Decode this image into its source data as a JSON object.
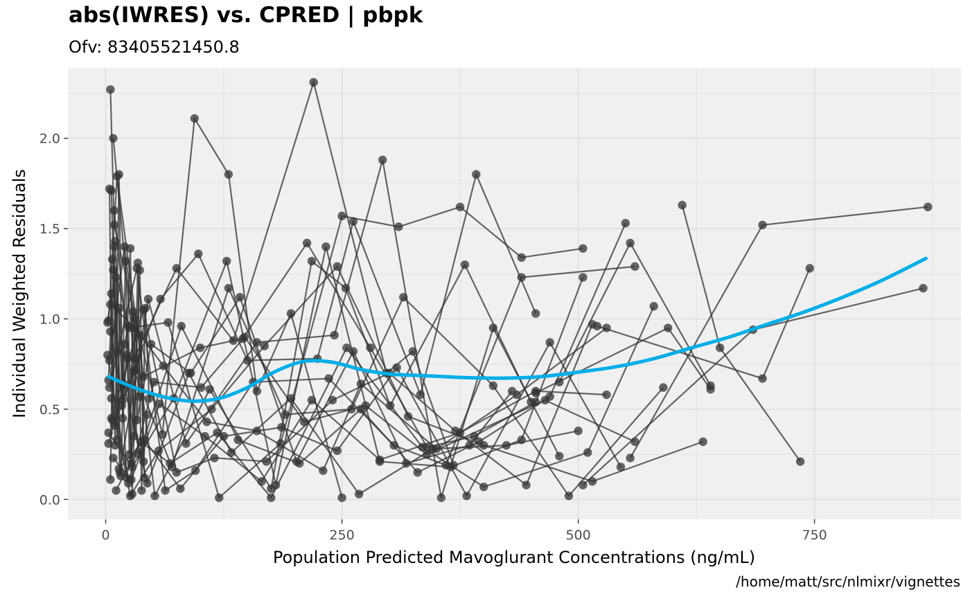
{
  "chart_data": {
    "type": "line",
    "title": "abs(IWRES) vs. CPRED | pbpk",
    "subtitle": "Ofv: 83405521450.8",
    "caption": "/home/matt/src/nlmixr/vignettes",
    "xlabel": "Population Predicted Mavoglurant Concentrations (ng/mL)",
    "ylabel": "Individual Weighted Residuals",
    "xlim": [
      -40,
      905
    ],
    "ylim": [
      -0.11,
      2.39
    ],
    "x_ticks": [
      0,
      250,
      500,
      750
    ],
    "x_tick_labels": [
      "0",
      "250",
      "500",
      "750"
    ],
    "y_ticks": [
      0.0,
      0.5,
      1.0,
      1.5,
      2.0
    ],
    "y_tick_labels": [
      "0.0",
      "0.5",
      "1.0",
      "1.5",
      "2.0"
    ],
    "grid": true,
    "panel_background": "#f0f0f0",
    "grid_color": "#dedede",
    "point_color": "#333333",
    "trend_color": "#00aee8",
    "series": [
      {
        "x": [
          5,
          9,
          60,
          94,
          130,
          160,
          196,
          250
        ],
        "y": [
          2.27,
          1.52,
          0.36,
          2.11,
          1.8,
          0.6,
          1.03,
          0.01
        ]
      },
      {
        "x": [
          8,
          30,
          75,
          135,
          220,
          297,
          325,
          368
        ],
        "y": [
          2.0,
          0.78,
          1.28,
          0.88,
          2.31,
          0.7,
          0.82,
          0.19
        ]
      },
      {
        "x": [
          3,
          12,
          40,
          100,
          145,
          213,
          280,
          340,
          390,
          455
        ],
        "y": [
          0.99,
          1.79,
          0.68,
          0.84,
          0.89,
          1.42,
          0.84,
          0.29,
          0.35,
          0.54
        ]
      },
      {
        "x": [
          6,
          15,
          45,
          85,
          160,
          242,
          293,
          355,
          410,
          480
        ],
        "y": [
          1.71,
          0.15,
          1.11,
          0.31,
          0.87,
          0.91,
          1.88,
          0.01,
          0.95,
          0.24
        ]
      },
      {
        "x": [
          4,
          20,
          52,
          110,
          175,
          218,
          254,
          301,
          380,
          450
        ],
        "y": [
          0.77,
          1.4,
          0.02,
          0.61,
          0.06,
          1.32,
          1.17,
          0.52,
          1.3,
          0.54
        ]
      },
      {
        "x": [
          7,
          25,
          66,
          120,
          185,
          250,
          310,
          375,
          440,
          505
        ],
        "y": [
          1.33,
          0.95,
          0.98,
          0.01,
          0.31,
          1.57,
          1.51,
          1.62,
          1.34,
          1.39
        ]
      },
      {
        "x": [
          5,
          18,
          58,
          98,
          150,
          224,
          262,
          333,
          392,
          455
        ],
        "y": [
          0.93,
          0.55,
          1.11,
          1.36,
          0.77,
          0.78,
          1.54,
          0.58,
          1.8,
          1.03
        ]
      },
      {
        "x": [
          9,
          35,
          80,
          140,
          205,
          270,
          330,
          395,
          470,
          550
        ],
        "y": [
          1.6,
          0.25,
          0.96,
          0.33,
          0.2,
          0.5,
          0.15,
          0.32,
          0.57,
          1.53
        ]
      },
      {
        "x": [
          3,
          28,
          72,
          128,
          180,
          233,
          290,
          365,
          440,
          505
        ],
        "y": [
          0.37,
          0.18,
          0.56,
          1.32,
          0.08,
          1.4,
          0.21,
          0.18,
          0.33,
          1.23
        ]
      },
      {
        "x": [
          10,
          22,
          48,
          90,
          142,
          202,
          262,
          318,
          385,
          430
        ],
        "y": [
          1.43,
          0.12,
          0.86,
          0.7,
          1.12,
          0.21,
          0.82,
          0.2,
          0.3,
          0.6
        ]
      },
      {
        "x": [
          6,
          40,
          75,
          115,
          170,
          240,
          300,
          370,
          445,
          515
        ],
        "y": [
          0.45,
          1.05,
          0.15,
          0.23,
          0.21,
          0.55,
          0.7,
          0.38,
          0.08,
          0.97
        ]
      },
      {
        "x": [
          4,
          33,
          63,
          95,
          156,
          236,
          305,
          360,
          440,
          560
        ],
        "y": [
          0.62,
          1.28,
          0.05,
          0.16,
          0.65,
          0.67,
          0.3,
          0.19,
          1.23,
          1.29
        ]
      },
      {
        "x": [
          8,
          27,
          57,
          105,
          165,
          218,
          290,
          375,
          455,
          530
        ],
        "y": [
          0.23,
          0.11,
          0.53,
          0.35,
          0.1,
          0.55,
          0.22,
          0.37,
          0.6,
          0.58
        ]
      },
      {
        "x": [
          11,
          37,
          68,
          118,
          175,
          255,
          335,
          400,
          510,
          580
        ],
        "y": [
          0.05,
          0.32,
          0.2,
          0.37,
          0.01,
          0.84,
          0.29,
          0.07,
          0.26,
          1.07
        ]
      },
      {
        "x": [
          3,
          19,
          44,
          88,
          133,
          196,
          268,
          346,
          424,
          500
        ],
        "y": [
          0.31,
          0.64,
          0.09,
          0.7,
          0.26,
          0.56,
          0.03,
          0.28,
          0.3,
          0.38
        ]
      },
      {
        "x": [
          5,
          31,
          61,
          107,
          160,
          230,
          270,
          350,
          435,
          530
        ],
        "y": [
          1.08,
          0.95,
          0.74,
          0.43,
          0.38,
          0.16,
          0.64,
          0.28,
          0.58,
          0.95
        ]
      },
      {
        "x": [
          14,
          41,
          79,
          125,
          186,
          245,
          308,
          382,
          470,
          545
        ],
        "y": [
          0.17,
          0.33,
          0.06,
          0.35,
          0.4,
          0.27,
          0.73,
          0.02,
          0.87,
          0.18
        ]
      },
      {
        "x": [
          2,
          24,
          51,
          101,
          147,
          210,
          275,
          340,
          465,
          560
        ],
        "y": [
          0.8,
          0.09,
          0.65,
          0.62,
          0.9,
          0.43,
          0.52,
          0.25,
          0.55,
          0.32
        ]
      },
      {
        "x": [
          9,
          30,
          70,
          130,
          190,
          260,
          315,
          410,
          490,
          590
        ],
        "y": [
          0.41,
          0.71,
          0.18,
          1.17,
          0.47,
          0.5,
          1.12,
          0.63,
          0.02,
          0.62
        ]
      },
      {
        "x": [
          6,
          26,
          56,
          112,
          168,
          245,
          320,
          400,
          515,
          632
        ],
        "y": [
          0.56,
          0.02,
          0.27,
          0.5,
          0.85,
          1.29,
          0.46,
          0.3,
          0.1,
          0.32
        ]
      },
      {
        "x": [
          480,
          555,
          640
        ],
        "y": [
          0.65,
          1.42,
          0.63
        ]
      },
      {
        "x": [
          455,
          595,
          640
        ],
        "y": [
          0.59,
          0.95,
          0.61
        ]
      },
      {
        "x": [
          610,
          650,
          735
        ],
        "y": [
          1.63,
          0.84,
          0.21
        ]
      },
      {
        "x": [
          555,
          695,
          870
        ],
        "y": [
          0.23,
          1.52,
          1.62
        ]
      },
      {
        "x": [
          505,
          685,
          865
        ],
        "y": [
          0.08,
          0.94,
          1.17
        ]
      },
      {
        "x": [
          520,
          695,
          745
        ],
        "y": [
          0.96,
          0.67,
          1.28
        ]
      },
      {
        "x": [
          2,
          6,
          10,
          14,
          18,
          22,
          26,
          30,
          34,
          38,
          42,
          46
        ],
        "y": [
          0.98,
          1.14,
          0.3,
          1.8,
          0.45,
          0.8,
          1.39,
          0.35,
          1.31,
          0.05,
          1.06,
          0.56
        ]
      },
      {
        "x": [
          3,
          8,
          13,
          17,
          21,
          25,
          29,
          33,
          37,
          41
        ],
        "y": [
          0.66,
          1.27,
          0.82,
          0.52,
          1.32,
          0.25,
          1.04,
          0.44,
          0.91,
          0.12
        ]
      },
      {
        "x": [
          4,
          7,
          11,
          16,
          20,
          24,
          28,
          32,
          36,
          40,
          44
        ],
        "y": [
          1.72,
          0.44,
          1.23,
          0.13,
          0.86,
          0.96,
          0.03,
          0.72,
          1.27,
          0.21,
          0.47
        ]
      },
      {
        "x": [
          5,
          9,
          12,
          15,
          19,
          23,
          27,
          31,
          35
        ],
        "y": [
          0.11,
          1.4,
          0.33,
          1.06,
          0.63,
          0.78,
          0.2,
          1.0,
          0.57
        ]
      }
    ],
    "trend": {
      "x": [
        3,
        30,
        60,
        90,
        120,
        150,
        180,
        210,
        240,
        270,
        300,
        340,
        380,
        420,
        460,
        500,
        540,
        580,
        620,
        660,
        700,
        740,
        780,
        820,
        868
      ],
      "y": [
        0.68,
        0.62,
        0.57,
        0.545,
        0.56,
        0.62,
        0.71,
        0.765,
        0.76,
        0.72,
        0.695,
        0.685,
        0.675,
        0.672,
        0.68,
        0.705,
        0.735,
        0.78,
        0.84,
        0.9,
        0.97,
        1.04,
        1.12,
        1.21,
        1.335
      ]
    }
  }
}
